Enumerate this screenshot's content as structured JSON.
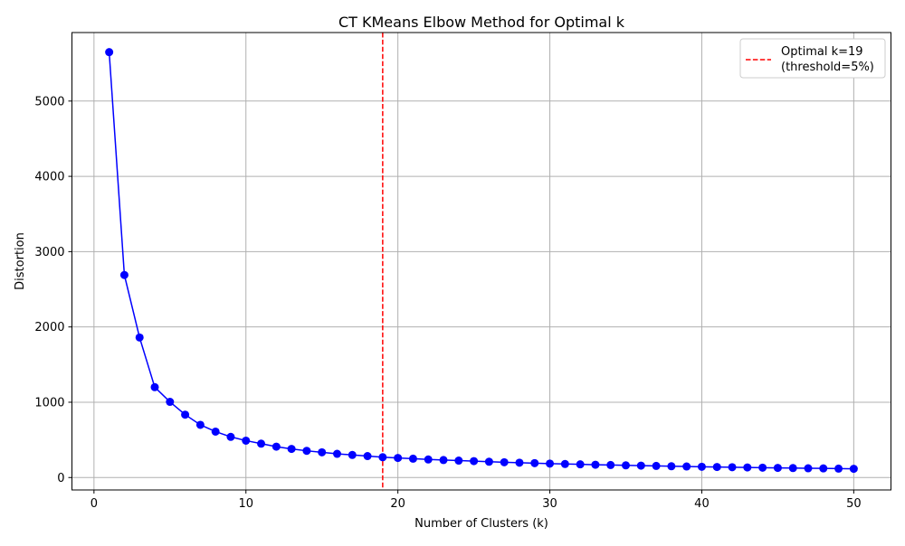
{
  "chart_data": {
    "type": "line",
    "title": "CT KMeans Elbow Method for Optimal k",
    "xlabel": "Number of Clusters (k)",
    "ylabel": "Distortion",
    "xlim": [
      -1.45,
      52.45
    ],
    "ylim": [
      -165,
      5910
    ],
    "xticks": [
      0,
      10,
      20,
      30,
      40,
      50
    ],
    "yticks": [
      0,
      1000,
      2000,
      3000,
      4000,
      5000
    ],
    "grid": true,
    "legend_position": "top-right",
    "series": [
      {
        "color": "#0000ff",
        "marker": "circle",
        "x": [
          1,
          2,
          3,
          4,
          5,
          6,
          7,
          8,
          9,
          10,
          11,
          12,
          13,
          14,
          15,
          16,
          17,
          18,
          19,
          20,
          21,
          22,
          23,
          24,
          25,
          26,
          27,
          28,
          29,
          30,
          31,
          32,
          33,
          34,
          35,
          36,
          37,
          38,
          39,
          40,
          41,
          42,
          43,
          44,
          45,
          46,
          47,
          48,
          49,
          50
        ],
        "y": [
          5650,
          2690,
          1860,
          1200,
          1005,
          835,
          700,
          610,
          540,
          490,
          450,
          410,
          380,
          355,
          335,
          315,
          300,
          285,
          270,
          260,
          250,
          240,
          232,
          225,
          218,
          210,
          203,
          197,
          191,
          185,
          180,
          175,
          170,
          166,
          162,
          158,
          154,
          150,
          147,
          143,
          140,
          137,
          134,
          131,
          128,
          126,
          123,
          121,
          118,
          116
        ]
      }
    ],
    "annotations": [
      {
        "type": "vline",
        "x": 19,
        "color": "#ff0000",
        "style": "dashed",
        "label_line1": "Optimal k=19",
        "label_line2": "(threshold=5%)"
      }
    ]
  }
}
